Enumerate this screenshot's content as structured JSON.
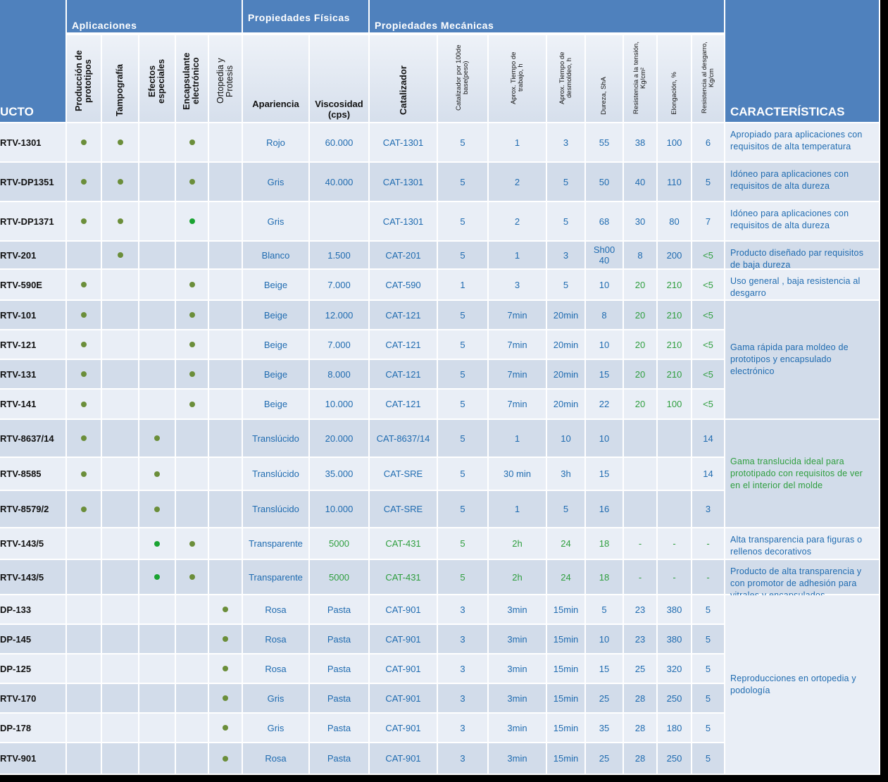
{
  "header": {
    "product": "UCTO",
    "characteristics": "CARACTERÍSTICAS",
    "groups": [
      "Aplicaciones",
      "Propiedades Físicas",
      "Propiedades Mecánicas"
    ],
    "applications": [
      "Producción de prototipos",
      "Tampografía",
      "Efectos especiales",
      "Encapsulante electrónico",
      "Ortopedia y Protesis"
    ],
    "columns": [
      "Apariencia",
      "Viscosidad (cps)",
      "Catalizador",
      "Catalizador por 100de base(peso)",
      "Aprox. Tiempo de trabajo, h",
      "Aprox. Tiempo de desmoldeo, h",
      "Dureza, ShA",
      "Resistencia a la tensión, Kg/cm²",
      "Elongación, %",
      "Resistencia al desgarro, Kg/cm"
    ]
  },
  "rows": [
    {
      "product": "RTV-1301",
      "apps": [
        "#6b8e3a",
        "#6b8e3a",
        null,
        "#6b8e3a",
        null
      ],
      "cells": [
        "Rojo",
        "60.000",
        "CAT-1301",
        "5",
        "1",
        "3",
        "55",
        "38",
        "100",
        "6"
      ],
      "characteristics": {
        "text": "Apropiado para aplicaciones con requisitos de alta temperatura"
      }
    },
    {
      "product": "RTV-DP1351",
      "apps": [
        "#6b8e3a",
        "#6b8e3a",
        null,
        "#6b8e3a",
        null
      ],
      "cells": [
        "Gris",
        "40.000",
        "CAT-1301",
        "5",
        "2",
        "5",
        "50",
        "40",
        "110",
        "5"
      ],
      "characteristics": {
        "text": "Idóneo para aplicaciones con requisitos de alta dureza"
      }
    },
    {
      "product": "RTV-DP1371",
      "apps": [
        "#6b8e3a",
        "#6b8e3a",
        null,
        "#1aa332",
        null
      ],
      "cells": [
        "Gris",
        null,
        "CAT-1301",
        "5",
        "2",
        "5",
        "68",
        "30",
        "80",
        "7"
      ],
      "characteristics": {
        "text": "Idóneo para aplicaciones con requisitos de alta dureza"
      }
    },
    {
      "product": "RTV-201",
      "apps": [
        null,
        "#6b8e3a",
        null,
        null,
        null
      ],
      "cells": [
        "Blanco",
        "1.500",
        "CAT-201",
        "5",
        "1",
        "3",
        "Sh00 40",
        "8",
        "200",
        {
          "text": "<5",
          "color": "#2e9e3e"
        }
      ],
      "characteristics": {
        "text": "Producto diseñado par requisitos de baja dureza"
      }
    },
    {
      "product": "RTV-590E",
      "apps": [
        "#6b8e3a",
        null,
        null,
        "#6b8e3a",
        null
      ],
      "cells": [
        "Beige",
        "7.000",
        "CAT-590",
        "1",
        "3",
        "5",
        "10",
        {
          "text": "20",
          "color": "#2e9e3e"
        },
        {
          "text": "210",
          "color": "#2e9e3e"
        },
        {
          "text": "<5",
          "color": "#2e9e3e"
        }
      ],
      "characteristics": {
        "text": "Uso general , baja resistencia al desgarro"
      }
    },
    {
      "product": "RTV-101",
      "apps": [
        "#6b8e3a",
        null,
        null,
        "#6b8e3a",
        null
      ],
      "cells": [
        "Beige",
        "12.000",
        "CAT-121",
        "5",
        "7min",
        "20min",
        "8",
        {
          "text": "20",
          "color": "#2e9e3e"
        },
        {
          "text": "210",
          "color": "#2e9e3e"
        },
        {
          "text": "<5",
          "color": "#2e9e3e"
        }
      ],
      "characteristics": {
        "text": "Gama rápida para moldeo de prototipos y encapsulado electrónico"
      }
    },
    {
      "product": "RTV-121",
      "apps": [
        "#6b8e3a",
        null,
        null,
        "#6b8e3a",
        null
      ],
      "cells": [
        "Beige",
        "7.000",
        "CAT-121",
        "5",
        "7min",
        "20min",
        "10",
        {
          "text": "20",
          "color": "#2e9e3e"
        },
        {
          "text": "210",
          "color": "#2e9e3e"
        },
        {
          "text": "<5",
          "color": "#2e9e3e"
        }
      ],
      "characteristics": null
    },
    {
      "product": "RTV-131",
      "apps": [
        "#6b8e3a",
        null,
        null,
        "#6b8e3a",
        null
      ],
      "cells": [
        "Beige",
        "8.000",
        "CAT-121",
        "5",
        "7min",
        "20min",
        "15",
        {
          "text": "20",
          "color": "#2e9e3e"
        },
        {
          "text": "210",
          "color": "#2e9e3e"
        },
        {
          "text": "<5",
          "color": "#2e9e3e"
        }
      ],
      "characteristics": null
    },
    {
      "product": "RTV-141",
      "apps": [
        "#6b8e3a",
        null,
        null,
        "#6b8e3a",
        null
      ],
      "cells": [
        "Beige",
        "10.000",
        "CAT-121",
        "5",
        "7min",
        "20min",
        "22",
        {
          "text": "20",
          "color": "#2e9e3e"
        },
        {
          "text": "100",
          "color": "#2e9e3e"
        },
        {
          "text": "<5",
          "color": "#2e9e3e"
        }
      ],
      "characteristics": null
    },
    {
      "product": "RTV-8637/14",
      "apps": [
        "#6b8e3a",
        null,
        "#6b8e3a",
        null,
        null
      ],
      "cells": [
        "Translúcido",
        "20.000",
        "CAT-8637/14",
        "5",
        "1",
        "10",
        "10",
        null,
        null,
        "14"
      ],
      "characteristics": {
        "text": "Gama translucida ideal para prototipado  con requisitos de ver en el interior del molde",
        "color": "#2e9e3e"
      }
    },
    {
      "product": "RTV-8585",
      "apps": [
        "#6b8e3a",
        null,
        "#6b8e3a",
        null,
        null
      ],
      "cells": [
        "Translúcido",
        "35.000",
        "CAT-SRE",
        "5",
        "30 min",
        "3h",
        "15",
        null,
        null,
        "14"
      ],
      "characteristics": null
    },
    {
      "product": "RTV-8579/2",
      "apps": [
        "#6b8e3a",
        null,
        "#6b8e3a",
        null,
        null
      ],
      "cells": [
        "Translúcido",
        "10.000",
        "CAT-SRE",
        "5",
        "1",
        "5",
        "16",
        null,
        null,
        "3"
      ],
      "characteristics": null
    },
    {
      "product": "RTV-143/5",
      "apps": [
        null,
        null,
        "#1aa332",
        "#6b8e3a",
        null
      ],
      "cells": [
        "Transparente",
        {
          "text": "5000",
          "color": "#2e9e3e"
        },
        {
          "text": "CAT-431",
          "color": "#2e9e3e"
        },
        {
          "text": "5",
          "color": "#2e9e3e"
        },
        {
          "text": "2h",
          "color": "#2e9e3e"
        },
        {
          "text": "24",
          "color": "#2e9e3e"
        },
        {
          "text": "18",
          "color": "#2e9e3e"
        },
        {
          "text": "-",
          "color": "#2e9e3e"
        },
        {
          "text": "-",
          "color": "#2e9e3e"
        },
        {
          "text": "-",
          "color": "#2e9e3e"
        }
      ],
      "characteristics": {
        "text": "Alta transparencia para figuras o rellenos decorativos"
      }
    },
    {
      "product": "RTV-143/5",
      "apps": [
        null,
        null,
        "#1aa332",
        "#6b8e3a",
        null
      ],
      "cells": [
        "Transparente",
        {
          "text": "5000",
          "color": "#2e9e3e"
        },
        {
          "text": "CAT-431",
          "color": "#2e9e3e"
        },
        {
          "text": "5",
          "color": "#2e9e3e"
        },
        {
          "text": "2h",
          "color": "#2e9e3e"
        },
        {
          "text": "24",
          "color": "#2e9e3e"
        },
        {
          "text": "18",
          "color": "#2e9e3e"
        },
        {
          "text": "-",
          "color": "#2e9e3e"
        },
        {
          "text": "-",
          "color": "#2e9e3e"
        },
        {
          "text": "-",
          "color": "#2e9e3e"
        }
      ],
      "characteristics": {
        "text": "Producto de alta transparencia y con promotor de adhesión para vitrales y encapsulados"
      }
    },
    {
      "product": "DP-133",
      "apps": [
        null,
        null,
        null,
        null,
        "#6b8e3a"
      ],
      "cells": [
        "Rosa",
        "Pasta",
        "CAT-901",
        "3",
        "3min",
        "15min",
        "5",
        "23",
        "380",
        "5"
      ],
      "characteristics": {
        "text": "Reproducciones en ortopedia y podología"
      }
    },
    {
      "product": "DP-145",
      "apps": [
        null,
        null,
        null,
        null,
        "#6b8e3a"
      ],
      "cells": [
        "Rosa",
        "Pasta",
        "CAT-901",
        "3",
        "3min",
        "15min",
        "10",
        "23",
        "380",
        "5"
      ],
      "characteristics": null
    },
    {
      "product": "DP-125",
      "apps": [
        null,
        null,
        null,
        null,
        "#6b8e3a"
      ],
      "cells": [
        "Rosa",
        "Pasta",
        "CAT-901",
        "3",
        "3min",
        "15min",
        "15",
        "25",
        "320",
        "5"
      ],
      "characteristics": null
    },
    {
      "product": "RTV-170",
      "apps": [
        null,
        null,
        null,
        null,
        "#6b8e3a"
      ],
      "cells": [
        "Gris",
        "Pasta",
        "CAT-901",
        "3",
        "3min",
        "15min",
        "25",
        "28",
        "250",
        "5"
      ],
      "characteristics": null
    },
    {
      "product": "DP-178",
      "apps": [
        null,
        null,
        null,
        null,
        "#6b8e3a"
      ],
      "cells": [
        "Gris",
        "Pasta",
        "CAT-901",
        "3",
        "3min",
        "15min",
        "35",
        "28",
        "180",
        "5"
      ],
      "characteristics": null
    },
    {
      "product": "RTV-901",
      "apps": [
        null,
        null,
        null,
        null,
        "#6b8e3a"
      ],
      "cells": [
        "Rosa",
        "Pasta",
        "CAT-901",
        "3",
        "3min",
        "15min",
        "25",
        "28",
        "250",
        "5"
      ],
      "characteristics": null
    }
  ]
}
